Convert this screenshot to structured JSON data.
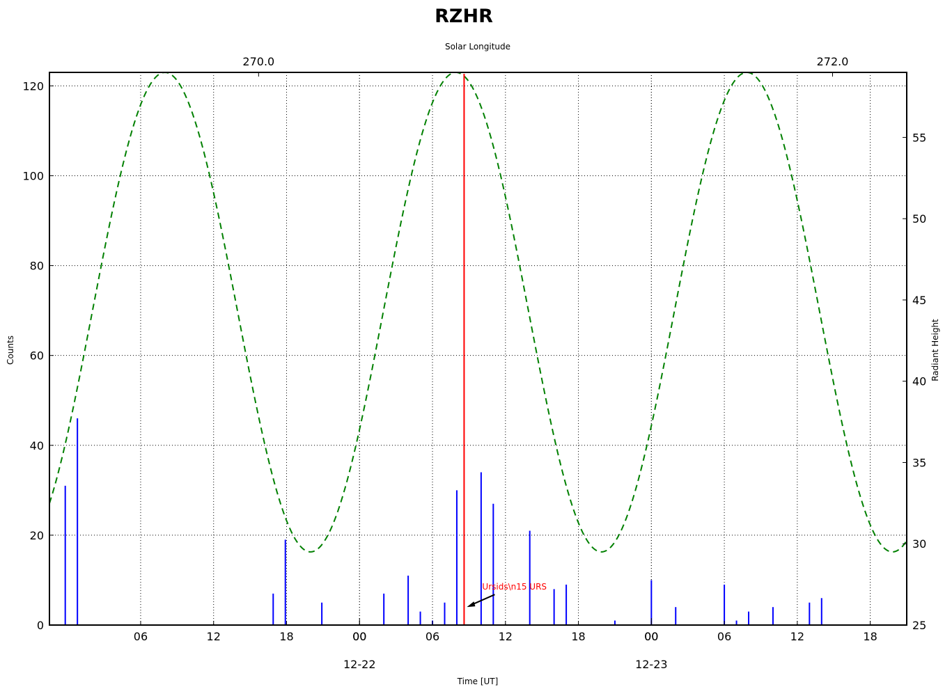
{
  "chart_data": {
    "type": "bar",
    "title": "RZHR",
    "xlabel": "Time [UT]",
    "ylabel_left": "Counts",
    "ylabel_right": "Radiant Height",
    "top_axis_label": "Solar Longitude",
    "ylim_left": [
      0,
      123
    ],
    "ylim_right": [
      25,
      59
    ],
    "xlim_hours": [
      -25.5,
      45.0
    ],
    "grid": true,
    "x_tick_labels": [
      "06",
      "12",
      "18",
      "00",
      "06",
      "12",
      "18",
      "00",
      "06",
      "12",
      "18"
    ],
    "x_tick_hours": [
      -18,
      -12,
      -6,
      0,
      6,
      12,
      18,
      24,
      30,
      36,
      42
    ],
    "date_labels": [
      {
        "label": "12-22",
        "hour": 0
      },
      {
        "label": "12-23",
        "hour": 24
      }
    ],
    "left_y_ticks": [
      0,
      20,
      40,
      60,
      80,
      100,
      120
    ],
    "right_y_ticks": [
      25,
      30,
      35,
      40,
      45,
      50,
      55
    ],
    "top_ticks": [
      {
        "label": "270.0",
        "hour": -8.3
      },
      {
        "label": "272.0",
        "hour": 38.9
      }
    ],
    "counts": {
      "name": "Counts",
      "color": "#0000ff",
      "x_hours": [
        -24.2,
        -23.2,
        -7.1,
        -6.1,
        -3.1,
        2.0,
        4.0,
        5.0,
        6.0,
        7.0,
        8.0,
        10.0,
        11.0,
        14.0,
        16.0,
        17.0,
        21.0,
        24.0,
        26.0,
        30.0,
        31.0,
        32.0,
        34.0,
        37.0,
        38.0
      ],
      "values": [
        31,
        46,
        7,
        19,
        5,
        7,
        11,
        3,
        1,
        5,
        30,
        34,
        27,
        21,
        8,
        9,
        1,
        10,
        4,
        9,
        1,
        3,
        4,
        5,
        6
      ]
    },
    "radiant_height": {
      "name": "Radiant Height",
      "color": "#008000",
      "style": "dashed",
      "min": 29.5,
      "max": 59.0,
      "period_hours": 23.93,
      "peak_hour": -16.0
    },
    "marker": {
      "x_hour": 8.6,
      "color": "#ff0000",
      "annotation": "Ursids\\n15 URS",
      "arrow_to_count": 4
    }
  }
}
